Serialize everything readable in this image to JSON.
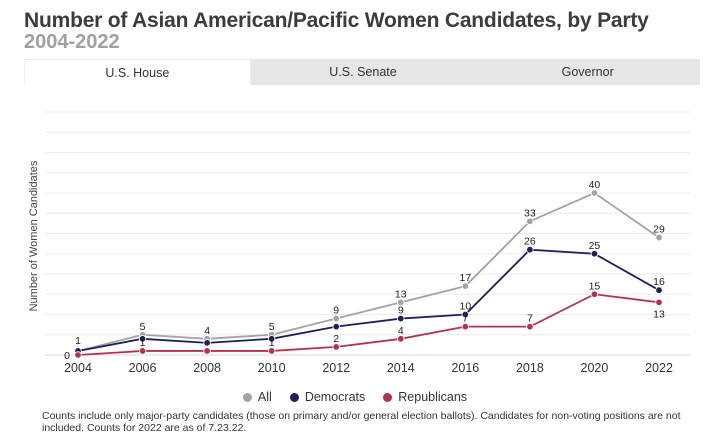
{
  "header": {
    "title": "Number of Asian American/Pacific Women Candidates, by Party",
    "subtitle": "2004-2022"
  },
  "tabs": [
    {
      "label": "U.S. House",
      "active": true
    },
    {
      "label": "U.S. Senate",
      "active": false
    },
    {
      "label": "Governor",
      "active": false
    }
  ],
  "chart_data": {
    "type": "line",
    "title": "Number of Asian American/Pacific Women Candidates, by Party",
    "subtitle": "2004-2022",
    "ylabel": "Number of Women Candidates",
    "xlabel": "",
    "x": [
      "2004",
      "2006",
      "2008",
      "2010",
      "2012",
      "2014",
      "2016",
      "2018",
      "2020",
      "2022"
    ],
    "ylim": [
      0,
      60
    ],
    "grid": true,
    "legend_position": "bottom",
    "series": [
      {
        "name": "All",
        "color": "#a3a3a3",
        "values": [
          1,
          5,
          4,
          5,
          9,
          13,
          17,
          33,
          40,
          29
        ],
        "labels": [
          "1",
          "5",
          "4",
          "5",
          "9",
          "13",
          "17",
          "33",
          "40",
          "29"
        ]
      },
      {
        "name": "Democrats",
        "color": "#1f1f5c",
        "values": [
          1,
          4,
          3,
          4,
          7,
          9,
          10,
          26,
          25,
          16
        ],
        "labels": [
          null,
          null,
          null,
          null,
          null,
          "9",
          "10",
          "26",
          "25",
          "16"
        ]
      },
      {
        "name": "Republicans",
        "color": "#b3334d",
        "values": [
          0,
          1,
          1,
          1,
          2,
          4,
          7,
          7,
          15,
          13
        ],
        "labels": [
          "0",
          "1",
          null,
          "1",
          "2",
          "4",
          "7",
          "7",
          "15",
          "13"
        ]
      }
    ]
  },
  "note": "Counts include only major-party candidates (those on primary and/or general election ballots). Candidates for non-voting positions are not included. Counts for 2022 are as of 7.23.22."
}
